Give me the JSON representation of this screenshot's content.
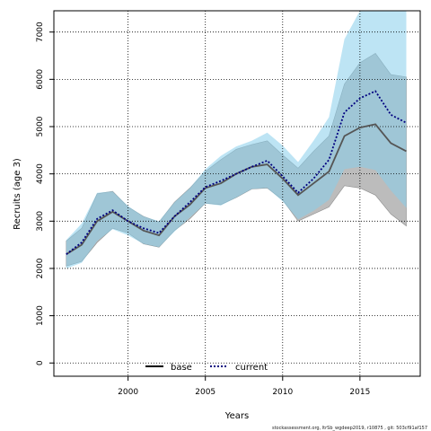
{
  "chart_data": {
    "type": "line",
    "title": "",
    "xlabel": "Years",
    "ylabel": "Recruits (age 3)",
    "xlim": [
      1995.2,
      2018.9
    ],
    "ylim": [
      -280,
      7450
    ],
    "x_ticks": [
      2000,
      2005,
      2010,
      2015
    ],
    "x_tick_labels": [
      "2000",
      "2005",
      "2010",
      "2015"
    ],
    "y_ticks": [
      0,
      1000,
      2000,
      3000,
      4000,
      5000,
      6000,
      7000
    ],
    "y_tick_labels": [
      "0",
      "1000",
      "2000",
      "3000",
      "4000",
      "5000",
      "6000",
      "7000"
    ],
    "grid": true,
    "legend_position": "bottom-center",
    "years": [
      1996,
      1997,
      1998,
      1999,
      2000,
      2001,
      2002,
      2003,
      2004,
      2005,
      2006,
      2007,
      2008,
      2009,
      2010,
      2011,
      2012,
      2013,
      2014,
      2015,
      2016,
      2017,
      2018
    ],
    "series": [
      {
        "name": "base",
        "line_color": "#555555",
        "line_style": "solid",
        "band_color": "#a6a6a6",
        "values": [
          2300,
          2500,
          3000,
          3200,
          3000,
          2800,
          2700,
          3100,
          3350,
          3700,
          3800,
          4000,
          4150,
          4200,
          3900,
          3550,
          3800,
          4050,
          4800,
          4980,
          5050,
          4650,
          4480
        ],
        "lower": [
          2050,
          2150,
          2550,
          2850,
          2750,
          2520,
          2450,
          2800,
          3050,
          3380,
          3350,
          3500,
          3680,
          3700,
          3450,
          3000,
          3150,
          3300,
          3750,
          3700,
          3550,
          3150,
          2900
        ],
        "upper": [
          2580,
          2850,
          3580,
          3630,
          3300,
          3100,
          2980,
          3400,
          3700,
          4050,
          4300,
          4520,
          4620,
          4700,
          4400,
          4120,
          4480,
          4800,
          5900,
          6350,
          6550,
          6100,
          6050
        ]
      },
      {
        "name": "current",
        "line_color": "#000080",
        "line_style": "dotted",
        "band_color": "#87ceeb",
        "values": [
          2300,
          2550,
          3050,
          3230,
          3000,
          2850,
          2750,
          3100,
          3400,
          3720,
          3850,
          4000,
          4150,
          4280,
          3950,
          3600,
          3900,
          4300,
          5300,
          5600,
          5750,
          5250,
          5080
        ],
        "lower": [
          2000,
          2120,
          2580,
          2830,
          2700,
          2520,
          2450,
          2780,
          3080,
          3370,
          3330,
          3500,
          3680,
          3700,
          3420,
          3040,
          3220,
          3450,
          4100,
          4150,
          4080,
          3650,
          3280
        ],
        "upper": [
          2600,
          2950,
          3600,
          3630,
          3320,
          3100,
          3000,
          3400,
          3700,
          4100,
          4380,
          4580,
          4700,
          4870,
          4600,
          4250,
          4700,
          5200,
          6850,
          7450,
          7450,
          7450,
          7450
        ]
      }
    ]
  },
  "footer_text": "stockassessment.org, ltrSb_wgdeep2019, r10875 , git: 503cf91af157"
}
